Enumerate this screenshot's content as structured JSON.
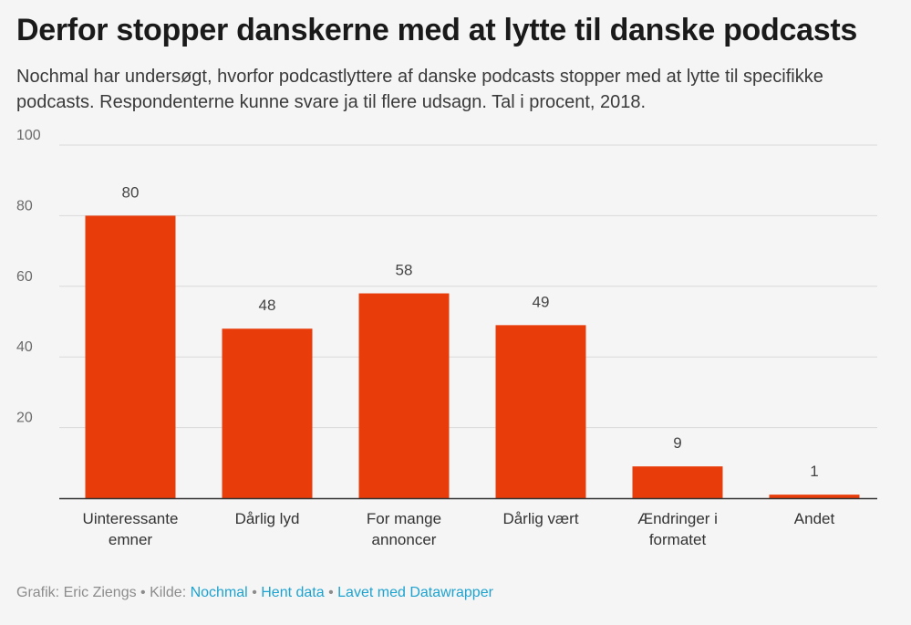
{
  "header": {
    "title": "Derfor stopper danskerne med at lytte til danske podcasts",
    "subtitle": "Nochmal har undersøgt, hvorfor podcastlyttere af danske podcasts stopper med at lytte til specifikke podcasts. Respondenterne kunne svare ja til flere udsagn. Tal i procent, 2018."
  },
  "chart_data": {
    "type": "bar",
    "categories": [
      [
        "Uinteressante",
        "emner"
      ],
      [
        "Dårlig lyd"
      ],
      [
        "For mange",
        "annoncer"
      ],
      [
        "Dårlig vært"
      ],
      [
        "Ændringer i",
        "formatet"
      ],
      [
        "Andet"
      ]
    ],
    "values": [
      80,
      48,
      58,
      49,
      9,
      1
    ],
    "data_labels": [
      "80",
      "48",
      "58",
      "49",
      "9",
      "1"
    ],
    "ylim": [
      0,
      100
    ],
    "yticks": [
      20,
      40,
      60,
      80,
      100
    ],
    "ytick_labels": [
      "20",
      "40",
      "60",
      "80",
      "100"
    ],
    "grid": true,
    "bar_color": "#e83d0b",
    "gridline_color": "#d9d9d9",
    "axis_color": "#333333"
  },
  "footer": {
    "graphic_label": "Grafik: Eric Ziengs",
    "separator": "•",
    "source_prefix": "Kilde:",
    "source_link": "Nochmal",
    "data_link": "Hent data",
    "made_with_link": "Lavet med Datawrapper",
    "link_color": "#1ea3d0"
  }
}
